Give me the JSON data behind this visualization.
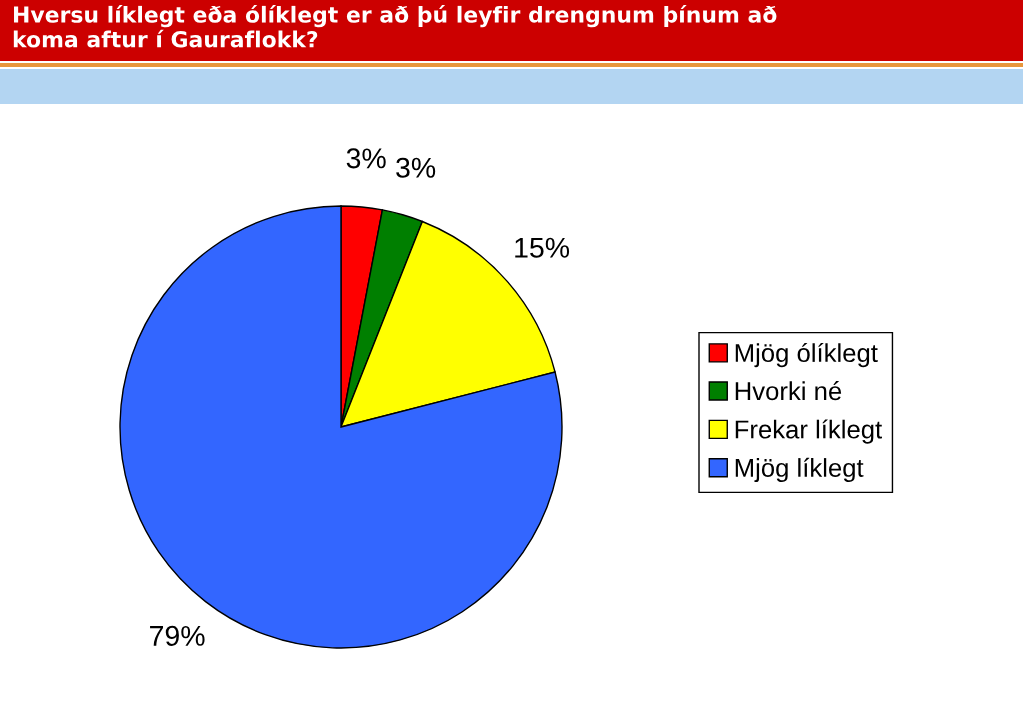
{
  "chart_data": {
    "type": "pie",
    "title": "Hversu líklegt eða ólíklegt er að þú leyfir drengnum þínum að\nkoma aftur í Gauraflokk?",
    "categories": [
      "Mjög ólíklegt",
      "Hvorki né",
      "Frekar líklegt",
      "Mjög líklegt"
    ],
    "values": [
      3,
      3,
      15,
      79
    ],
    "colors": [
      "#ff0000",
      "#007f00",
      "#ffff00",
      "#3366ff"
    ],
    "value_labels": [
      "3%",
      "3%",
      "15%",
      "79%"
    ],
    "legend": "right"
  }
}
